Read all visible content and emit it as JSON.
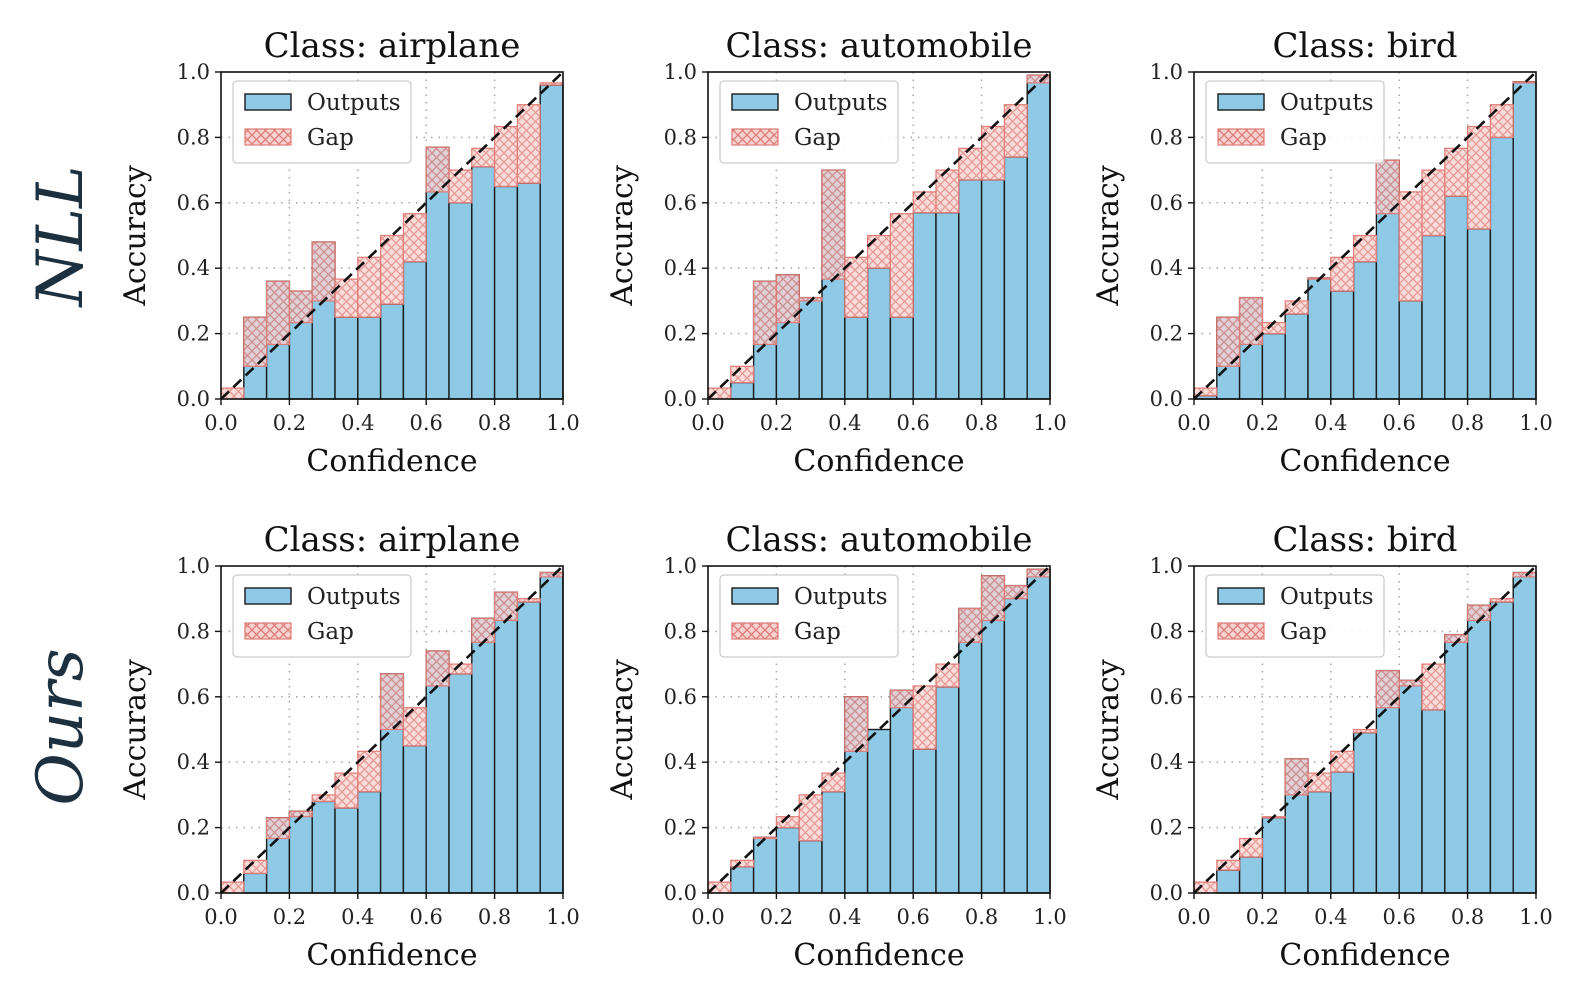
{
  "rows": [
    {
      "label": "NLL"
    },
    {
      "label": "Ours"
    }
  ],
  "colors": {
    "outputs_fill": "#8ecae6",
    "outputs_edge": "#1a1a1a",
    "gap_fill": "#f6d3d1",
    "gap_edge": "#e07b76",
    "diagonal": "#111111",
    "grid": "#aaaaaa"
  },
  "chart_data": [
    {
      "type": "bar",
      "row": 0,
      "col": 0,
      "title": "Class: airplane",
      "xlabel": "Confidence",
      "ylabel": "Accuracy",
      "xlim": [
        0,
        1
      ],
      "ylim": [
        0,
        1
      ],
      "xticks": [
        "0.0",
        "0.2",
        "0.4",
        "0.6",
        "0.8",
        "1.0"
      ],
      "yticks": [
        "0.0",
        "0.2",
        "0.4",
        "0.6",
        "0.8",
        "1.0"
      ],
      "grid": true,
      "legend_position": "upper-left",
      "legend": [
        "Outputs",
        "Gap"
      ],
      "bins": 15,
      "outputs": [
        0,
        0.25,
        0.36,
        0.33,
        0.48,
        0.25,
        0.25,
        0.29,
        0.42,
        0.77,
        0.6,
        0.71,
        0.65,
        0.66,
        0.96
      ]
    },
    {
      "type": "bar",
      "row": 0,
      "col": 1,
      "title": "Class: automobile",
      "xlabel": "Confidence",
      "ylabel": "Accuracy",
      "xlim": [
        0,
        1
      ],
      "ylim": [
        0,
        1
      ],
      "xticks": [
        "0.0",
        "0.2",
        "0.4",
        "0.6",
        "0.8",
        "1.0"
      ],
      "yticks": [
        "0.0",
        "0.2",
        "0.4",
        "0.6",
        "0.8",
        "1.0"
      ],
      "grid": true,
      "legend_position": "upper-left",
      "legend": [
        "Outputs",
        "Gap"
      ],
      "bins": 15,
      "outputs": [
        0,
        0.05,
        0.36,
        0.38,
        0.31,
        0.7,
        0.25,
        0.4,
        0.25,
        0.57,
        0.57,
        0.67,
        0.67,
        0.74,
        0.99
      ]
    },
    {
      "type": "bar",
      "row": 0,
      "col": 2,
      "title": "Class: bird",
      "xlabel": "Confidence",
      "ylabel": "Accuracy",
      "xlim": [
        0,
        1
      ],
      "ylim": [
        0,
        1
      ],
      "xticks": [
        "0.0",
        "0.2",
        "0.4",
        "0.6",
        "0.8",
        "1.0"
      ],
      "yticks": [
        "0.0",
        "0.2",
        "0.4",
        "0.6",
        "0.8",
        "1.0"
      ],
      "grid": true,
      "legend_position": "upper-left",
      "legend": [
        "Outputs",
        "Gap"
      ],
      "bins": 15,
      "outputs": [
        0.01,
        0.25,
        0.31,
        0.2,
        0.26,
        0.37,
        0.33,
        0.42,
        0.73,
        0.3,
        0.5,
        0.62,
        0.52,
        0.8,
        0.97
      ]
    },
    {
      "type": "bar",
      "row": 1,
      "col": 0,
      "title": "Class: airplane",
      "xlabel": "Confidence",
      "ylabel": "Accuracy",
      "xlim": [
        0,
        1
      ],
      "ylim": [
        0,
        1
      ],
      "xticks": [
        "0.0",
        "0.2",
        "0.4",
        "0.6",
        "0.8",
        "1.0"
      ],
      "yticks": [
        "0.0",
        "0.2",
        "0.4",
        "0.6",
        "0.8",
        "1.0"
      ],
      "grid": true,
      "legend_position": "upper-left",
      "legend": [
        "Outputs",
        "Gap"
      ],
      "bins": 15,
      "outputs": [
        0,
        0.06,
        0.23,
        0.25,
        0.28,
        0.26,
        0.31,
        0.67,
        0.45,
        0.74,
        0.67,
        0.84,
        0.92,
        0.89,
        0.98
      ]
    },
    {
      "type": "bar",
      "row": 1,
      "col": 1,
      "title": "Class: automobile",
      "xlabel": "Confidence",
      "ylabel": "Accuracy",
      "xlim": [
        0,
        1
      ],
      "ylim": [
        0,
        1
      ],
      "xticks": [
        "0.0",
        "0.2",
        "0.4",
        "0.6",
        "0.8",
        "1.0"
      ],
      "yticks": [
        "0.0",
        "0.2",
        "0.4",
        "0.6",
        "0.8",
        "1.0"
      ],
      "grid": true,
      "legend_position": "upper-left",
      "legend": [
        "Outputs",
        "Gap"
      ],
      "bins": 15,
      "outputs": [
        0,
        0.08,
        0.17,
        0.2,
        0.16,
        0.31,
        0.6,
        0.5,
        0.62,
        0.44,
        0.63,
        0.87,
        0.97,
        0.94,
        0.99
      ]
    },
    {
      "type": "bar",
      "row": 1,
      "col": 2,
      "title": "Class: bird",
      "xlabel": "Confidence",
      "ylabel": "Accuracy",
      "xlim": [
        0,
        1
      ],
      "ylim": [
        0,
        1
      ],
      "xticks": [
        "0.0",
        "0.2",
        "0.4",
        "0.6",
        "0.8",
        "1.0"
      ],
      "yticks": [
        "0.0",
        "0.2",
        "0.4",
        "0.6",
        "0.8",
        "1.0"
      ],
      "grid": true,
      "legend_position": "upper-left",
      "legend": [
        "Outputs",
        "Gap"
      ],
      "bins": 15,
      "outputs": [
        0,
        0.07,
        0.11,
        0.23,
        0.41,
        0.31,
        0.37,
        0.49,
        0.68,
        0.65,
        0.56,
        0.79,
        0.88,
        0.89,
        0.98
      ]
    }
  ]
}
